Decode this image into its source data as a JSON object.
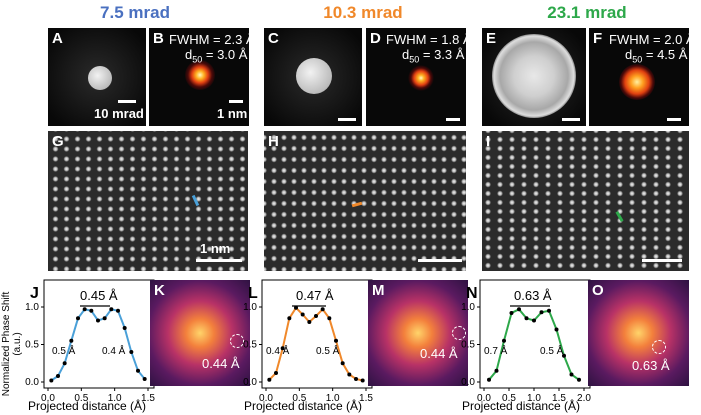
{
  "headers": [
    {
      "text": "7.5 mrad",
      "color": "#4a70c0"
    },
    {
      "text": "10.3 mrad",
      "color": "#f0882a"
    },
    {
      "text": "23.1 mrad",
      "color": "#2da84a"
    }
  ],
  "panels": {
    "A": {
      "label": "A",
      "scale_label": "10 mrad"
    },
    "B": {
      "label": "B",
      "fwhm": "FWHM = 2.3 Å",
      "d50_prefix": "d",
      "d50_sub": "50",
      "d50_value": " = 3.0 Å",
      "scale_label": "1 nm"
    },
    "C": {
      "label": "C"
    },
    "D": {
      "label": "D",
      "fwhm": "FWHM = 1.8 Å",
      "d50_prefix": "d",
      "d50_sub": "50",
      "d50_value": " = 3.3 Å"
    },
    "E": {
      "label": "E"
    },
    "F": {
      "label": "F",
      "fwhm": "FWHM = 2.0 Å",
      "d50_prefix": "d",
      "d50_sub": "50",
      "d50_value": " = 4.5 Å"
    },
    "G": {
      "label": "G",
      "scale_label": "1 nm"
    },
    "H": {
      "label": "H"
    },
    "I": {
      "label": "I"
    },
    "J": {
      "label": "J",
      "separation": "0.45 Å",
      "left_width": "0.5 Å",
      "right_width": "0.4 Å"
    },
    "K": {
      "label": "K",
      "resolution": "0.44 Å"
    },
    "L": {
      "label": "L",
      "separation": "0.47 Å",
      "left_width": "0.4 Å",
      "right_width": "0.5 Å"
    },
    "M": {
      "label": "M",
      "resolution": "0.44 Å"
    },
    "N": {
      "label": "N",
      "separation": "0.63 Å",
      "left_width": "0.7 Å",
      "right_width": "0.5 Å"
    },
    "O": {
      "label": "O",
      "resolution": "0.63 Å"
    }
  },
  "y_axis_label": "Normalized Phase Shift (a.u.)",
  "x_axis_label": "Projected distance (Å)",
  "chart_data": [
    {
      "type": "line",
      "panel": "J",
      "xlabel": "Projected distance (Å)",
      "ylabel": "Normalized Phase Shift (a.u.)",
      "xlim": [
        0,
        1.5
      ],
      "ylim": [
        0,
        1.2
      ],
      "x_ticks": [
        "0.0",
        "0.5",
        "1.0",
        "1.5"
      ],
      "y_ticks": [
        "0.0",
        "0.5",
        "1.0"
      ],
      "series_color": "#4aa0d8",
      "x": [
        0.05,
        0.15,
        0.25,
        0.35,
        0.45,
        0.55,
        0.65,
        0.75,
        0.85,
        0.95,
        1.05,
        1.15,
        1.25,
        1.35,
        1.45
      ],
      "y": [
        0.02,
        0.08,
        0.25,
        0.55,
        0.85,
        0.97,
        0.95,
        0.82,
        0.85,
        0.97,
        0.95,
        0.72,
        0.4,
        0.15,
        0.04
      ]
    },
    {
      "type": "line",
      "panel": "L",
      "xlabel": "Projected distance (Å)",
      "ylabel": "Normalized Phase Shift (a.u.)",
      "xlim": [
        0,
        1.5
      ],
      "ylim": [
        0,
        1.2
      ],
      "x_ticks": [
        "0.0",
        "0.5",
        "1.0",
        "1.5"
      ],
      "y_ticks": [
        "0.0",
        "0.5",
        "1.0"
      ],
      "series_color": "#f0882a",
      "x": [
        0.05,
        0.15,
        0.25,
        0.35,
        0.45,
        0.55,
        0.65,
        0.75,
        0.85,
        0.95,
        1.05,
        1.15,
        1.25,
        1.35,
        1.45
      ],
      "y": [
        0.03,
        0.12,
        0.45,
        0.85,
        0.99,
        0.9,
        0.8,
        0.88,
        0.97,
        0.85,
        0.55,
        0.25,
        0.1,
        0.04,
        0.02
      ]
    },
    {
      "type": "line",
      "panel": "N",
      "xlabel": "Projected distance (Å)",
      "ylabel": "Normalized Phase Shift (a.u.)",
      "xlim": [
        0,
        2.0
      ],
      "ylim": [
        0,
        1.2
      ],
      "x_ticks": [
        "0.0",
        "0.5",
        "1.0",
        "1.5",
        "2.0"
      ],
      "y_ticks": [
        "0.0",
        "0.5",
        "1.0"
      ],
      "series_color": "#2da84a",
      "x": [
        0.1,
        0.25,
        0.4,
        0.55,
        0.7,
        0.85,
        1.0,
        1.15,
        1.3,
        1.45,
        1.6,
        1.75,
        1.9
      ],
      "y": [
        0.03,
        0.15,
        0.55,
        0.92,
        0.97,
        0.85,
        0.82,
        0.93,
        0.95,
        0.7,
        0.35,
        0.1,
        0.03
      ]
    }
  ]
}
